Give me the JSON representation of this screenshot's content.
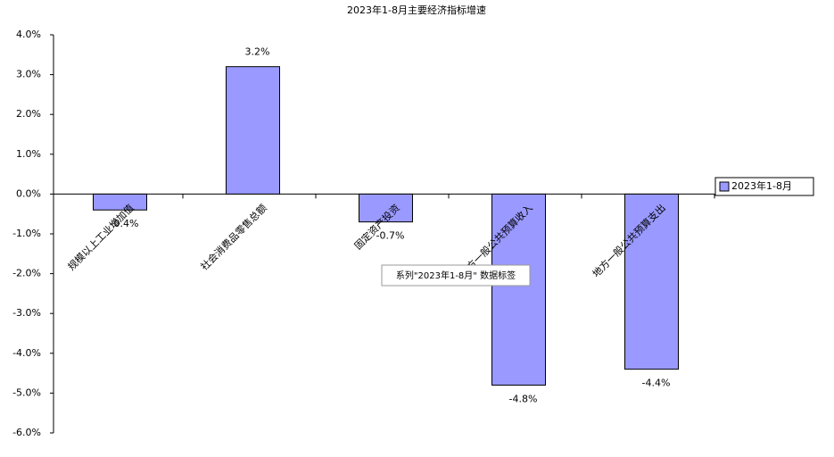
{
  "chart_data": {
    "type": "bar",
    "title": "2023年1-8月主要经济指标增速",
    "categories": [
      "规模以上工业增加值",
      "社会消费品零售总额",
      "固定资产投资",
      "地方一般公共预算收入",
      "地方一般公共预算支出"
    ],
    "series": [
      {
        "name": "2023年1-8月",
        "color": "#9999ff",
        "values": [
          -0.4,
          3.2,
          -0.7,
          -4.8,
          -4.4
        ],
        "value_labels": [
          "-0.4%",
          "3.2%",
          "-0.7%",
          "-4.8%",
          "-4.4%"
        ]
      }
    ],
    "ylim": [
      -6,
      4
    ],
    "yticks": [
      {
        "value": -6,
        "label": "-6.0%"
      },
      {
        "value": -5,
        "label": "-5.0%"
      },
      {
        "value": -4,
        "label": "-4.0%"
      },
      {
        "value": -3,
        "label": "-3.0%"
      },
      {
        "value": -2,
        "label": "-2.0%"
      },
      {
        "value": -1,
        "label": "-1.0%"
      },
      {
        "value": 0,
        "label": "0.0%"
      },
      {
        "value": 1,
        "label": "1.0%"
      },
      {
        "value": 2,
        "label": "2.0%"
      },
      {
        "value": 3,
        "label": "3.0%"
      },
      {
        "value": 4,
        "label": "4.0%"
      }
    ],
    "legend": "right",
    "tooltip": "系列\"2023年1-8月\" 数据标签"
  }
}
